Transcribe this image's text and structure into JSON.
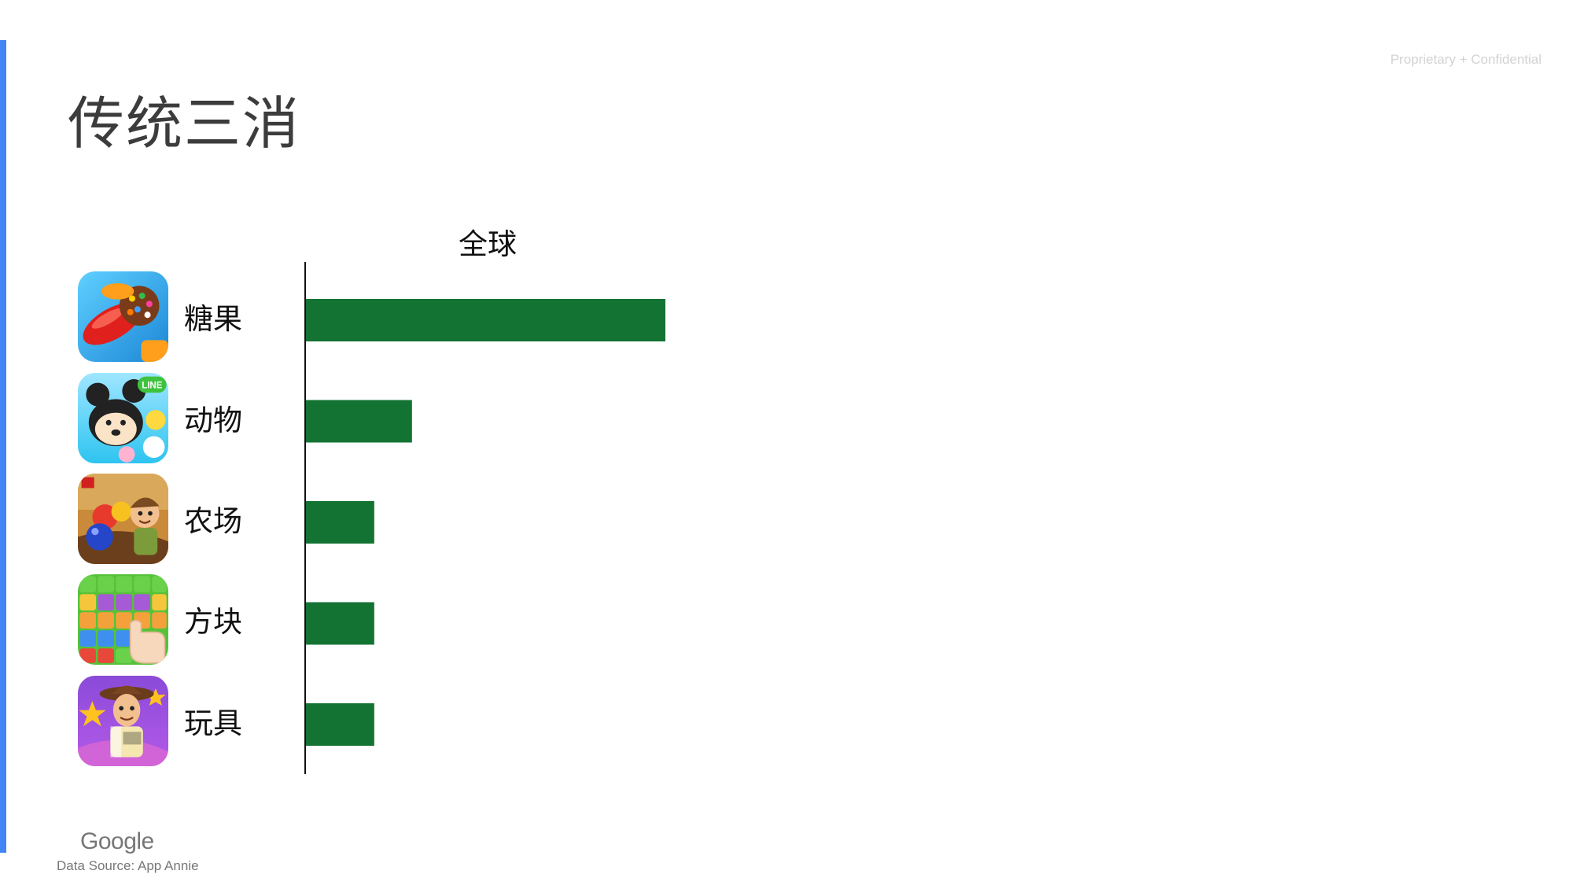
{
  "header": {
    "title": "传统三消",
    "confidential": "Proprietary + Confidential"
  },
  "footer": {
    "logo": "Google",
    "source": "Data Source: App Annie"
  },
  "colors": {
    "accent": "#4285f4",
    "bar": "#137333"
  },
  "chart_data": {
    "type": "bar",
    "orientation": "horizontal",
    "title": "全球",
    "categories": [
      "糖果",
      "动物",
      "农场",
      "方块",
      "玩具"
    ],
    "category_icons": [
      "candy-crush-app-icon",
      "tsum-tsum-app-icon",
      "farm-heroes-app-icon",
      "block-puzzle-app-icon",
      "toy-story-app-icon"
    ],
    "values": [
      100,
      29.5,
      19,
      19,
      19
    ],
    "xlabel": "",
    "ylabel": "",
    "xlim": [
      0,
      100
    ],
    "grid": false,
    "legend": "none",
    "tick_labels_shown": false
  }
}
